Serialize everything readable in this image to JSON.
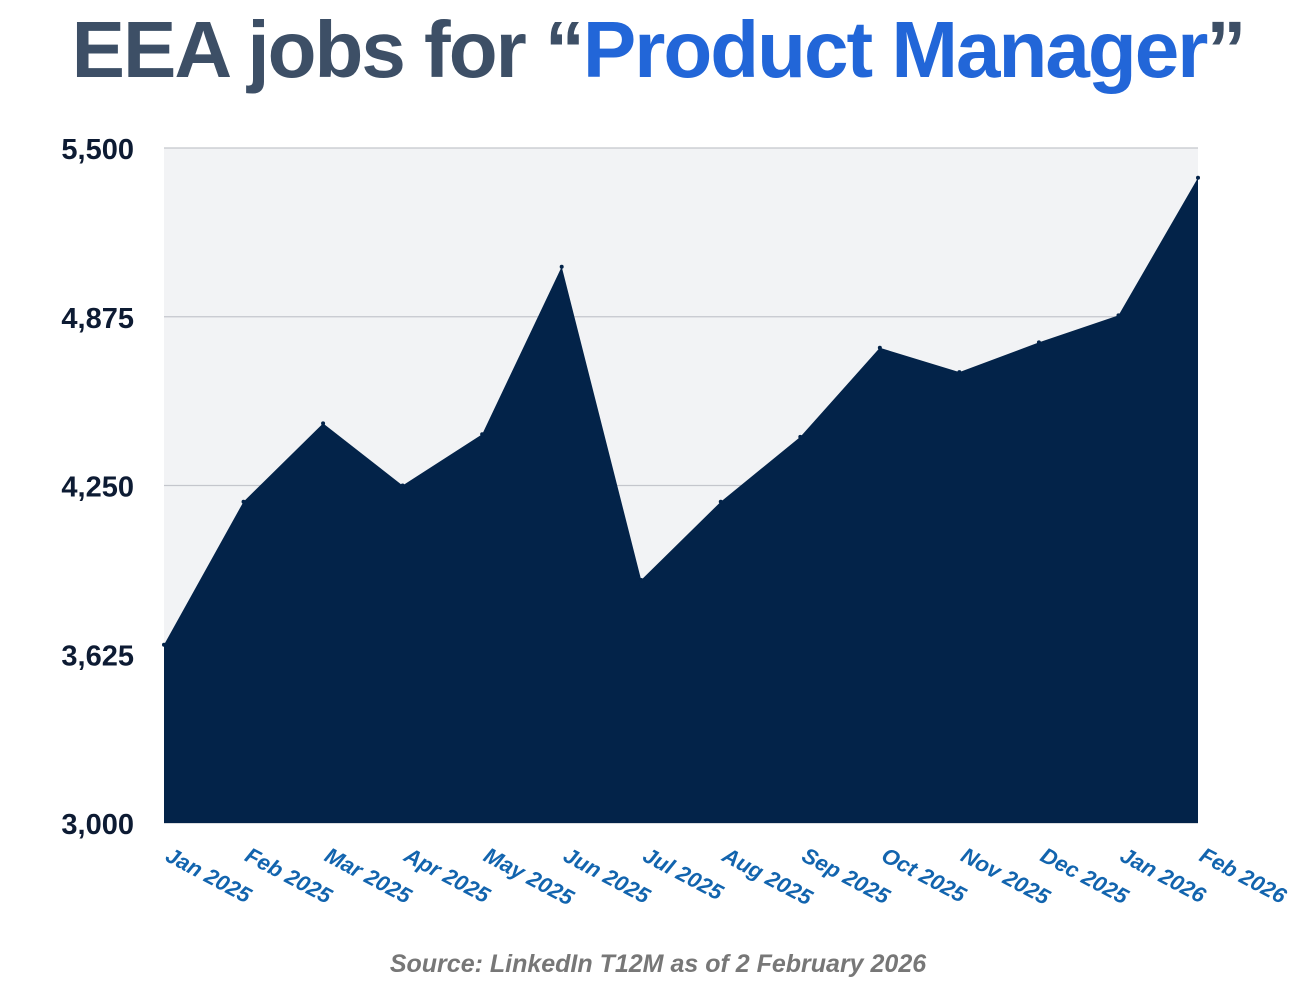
{
  "title": {
    "prefix": "EEA jobs for “",
    "highlight": "Product Manager",
    "suffix": "”"
  },
  "source": "Source: LinkedIn T12M as of 2 February 2026",
  "colors": {
    "area": "#032349",
    "plot_background": "#f2f3f5",
    "gridline": "#c4c6cc",
    "y_tick": "#0d1b33",
    "x_tick": "#1264ae",
    "title_dark": "#3d4f66",
    "title_accent": "#2266d8",
    "source": "#777777"
  },
  "chart_data": {
    "type": "area",
    "title": "EEA jobs for “Product Manager”",
    "xlabel": "",
    "ylabel": "",
    "categories": [
      "Jan 2025",
      "Feb 2025",
      "Mar 2025",
      "Apr 2025",
      "May 2025",
      "Jun 2025",
      "Jul 2025",
      "Aug 2025",
      "Sep 2025",
      "Oct 2025",
      "Nov 2025",
      "Dec 2025",
      "Jan 2026",
      "Feb 2026"
    ],
    "values": [
      3660,
      4190,
      4480,
      4250,
      4440,
      5060,
      3900,
      4190,
      4430,
      4760,
      4670,
      4780,
      4880,
      5390
    ],
    "ylim": [
      3000,
      5500
    ],
    "yticks": [
      3000,
      3625,
      4250,
      4875,
      5500
    ],
    "ytick_labels": [
      "3,000",
      "3,625",
      "4,250",
      "4,875",
      "5,500"
    ],
    "grid": true
  }
}
